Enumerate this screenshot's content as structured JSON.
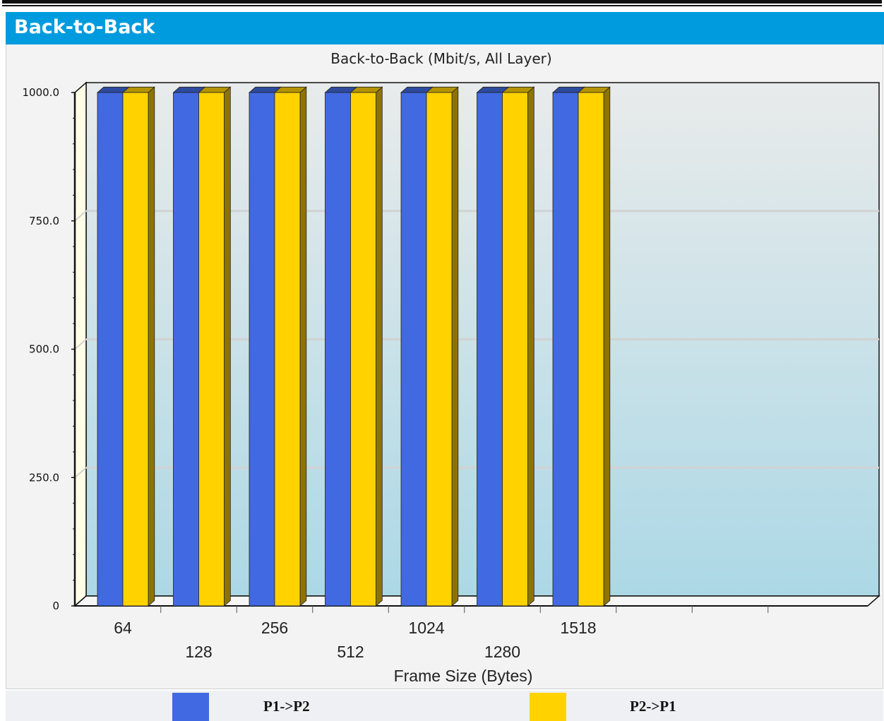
{
  "header": {
    "title": "Back-to-Back"
  },
  "chart_data": {
    "type": "bar",
    "title": "Back-to-Back (Mbit/s, All Layer)",
    "xlabel": "Frame Size (Bytes)",
    "ylabel": "",
    "categories": [
      "64",
      "128",
      "256",
      "512",
      "1024",
      "1280",
      "1518"
    ],
    "series": [
      {
        "name": "P1->P2",
        "color": "#4169e1",
        "values": [
          1000,
          1000,
          1000,
          1000,
          1000,
          1000,
          1000
        ]
      },
      {
        "name": "P2->P1",
        "color": "#ffd200",
        "values": [
          1000,
          1000,
          1000,
          1000,
          1000,
          1000,
          1000
        ]
      }
    ],
    "ylim": [
      0,
      1000
    ],
    "yticks": [
      "0",
      "250.0",
      "500.0",
      "750.0",
      "1000.0"
    ],
    "grid": true,
    "legend": "bottom",
    "style": "3d"
  }
}
